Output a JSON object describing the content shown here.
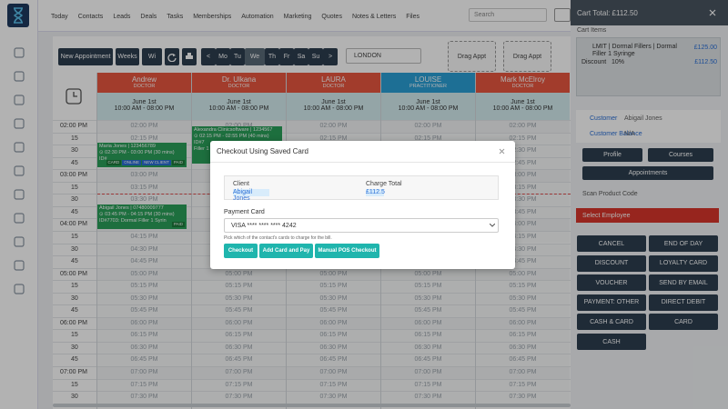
{
  "nav": {
    "items": [
      "Today",
      "Contacts",
      "Leads",
      "Deals",
      "Tasks",
      "Memberships",
      "Automation",
      "Marketing",
      "Quotes",
      "Notes & Letters",
      "Files"
    ],
    "search_placeholder": "Search"
  },
  "toolbar": {
    "buttons": [
      "New Appointment",
      "Weeks",
      "Wi"
    ],
    "days": [
      "<",
      "Mo",
      "Tu",
      "We",
      "Th",
      "Fr",
      "Sa",
      "Su",
      ">"
    ],
    "location": "LONDON",
    "drag": [
      "Drag Appt",
      "Drag Appt"
    ]
  },
  "calendar": {
    "staff": [
      {
        "name": "Andrew",
        "role": "DOCTOR",
        "color": "#e8563f"
      },
      {
        "name": "Dr. Ulkana",
        "role": "DOCTOR",
        "color": "#e8563f"
      },
      {
        "name": "LAURA",
        "role": "DOCTOR",
        "color": "#e8563f"
      },
      {
        "name": "LOUISE",
        "role": "PRACTITIONER",
        "color": "#2a9fd6"
      },
      {
        "name": "Mark McElroy",
        "role": "DOCTOR",
        "color": "#e8563f"
      }
    ],
    "date": "June 1st",
    "hours": "10:00 AM - 08:00 PM",
    "time_labels": [
      "02:00 PM",
      "15",
      "30",
      "45",
      "03:00 PM",
      "15",
      "30",
      "45",
      "04:00 PM",
      "15",
      "30",
      "45",
      "05:00 PM",
      "15",
      "30",
      "45",
      "06:00 PM",
      "15",
      "30",
      "45",
      "07:00 PM",
      "15",
      "30"
    ],
    "slot_labels": [
      "02:00 PM",
      "02:15 PM",
      "02:30 PM",
      "02:45 PM",
      "03:00 PM",
      "03:15 PM",
      "03:30 PM",
      "03:45 PM",
      "04:00 PM",
      "04:15 PM",
      "04:30 PM",
      "04:45 PM",
      "05:00 PM",
      "05:15 PM",
      "05:30 PM",
      "05:45 PM",
      "06:00 PM",
      "06:15 PM",
      "06:30 PM",
      "06:45 PM",
      "07:00 PM",
      "07:15 PM",
      "07:30 PM"
    ],
    "appointments": [
      {
        "lines": [
          "Maria Jones | 123456789",
          "⊙ 02:30 PM - 03:00 PM (30 mins)",
          "ID#"
        ],
        "tags": [
          "CARD",
          "ONLINE",
          "NEW CLIENT",
          "PAID"
        ]
      },
      {
        "lines": [
          "Abigail Jones | 07480009777",
          "⊙ 03:45 PM - 04:15 PM (30 mins)",
          "ID#7703: Dormal Filler 1 Syrin"
        ],
        "tags": [
          "PAID"
        ]
      },
      {
        "lines": [
          "Alexandra Clinicsoftware | 1234567",
          "⊙ 02:15 PM - 02:55 PM (40 mins)",
          "ID#7",
          "Filler 1"
        ],
        "tags": []
      }
    ]
  },
  "modal": {
    "title": "Checkout Using Saved Card",
    "client_label": "Client",
    "client": "Abigail Jones",
    "total_label": "Charge Total",
    "total": "£112.5",
    "card_label": "Payment Card",
    "card": "VISA **** **** **** 4242",
    "help": "Pick which of the contact's cards to charge for the bill.",
    "buttons": [
      "Checkout",
      "Add Card and Pay",
      "Manual POS Checkout"
    ]
  },
  "cart": {
    "title": "Cart Total: £112.50",
    "items_label": "Cart Items",
    "item": "LMIT | Dormal Fillers | Dormal Filler 1 Syringe",
    "item_price": "£125.00",
    "discount_label": "Discount",
    "discount": "10%",
    "discount_price": "£112.50",
    "customer_label": "Customer",
    "customer": "Abigail Jones",
    "balance_label": "Customer Balance",
    "balance": "N/A",
    "buttons": [
      "Profile",
      "Courses",
      "Appointments"
    ],
    "scan": "Scan Product Code",
    "employee": "Select Employee",
    "payments": [
      "CANCEL",
      "END OF DAY",
      "DISCOUNT",
      "LOYALTY CARD",
      "VOUCHER",
      "SEND BY EMAIL",
      "PAYMENT: OTHER",
      "DIRECT DEBIT",
      "CASH & CARD",
      "CARD",
      "CASH"
    ]
  }
}
